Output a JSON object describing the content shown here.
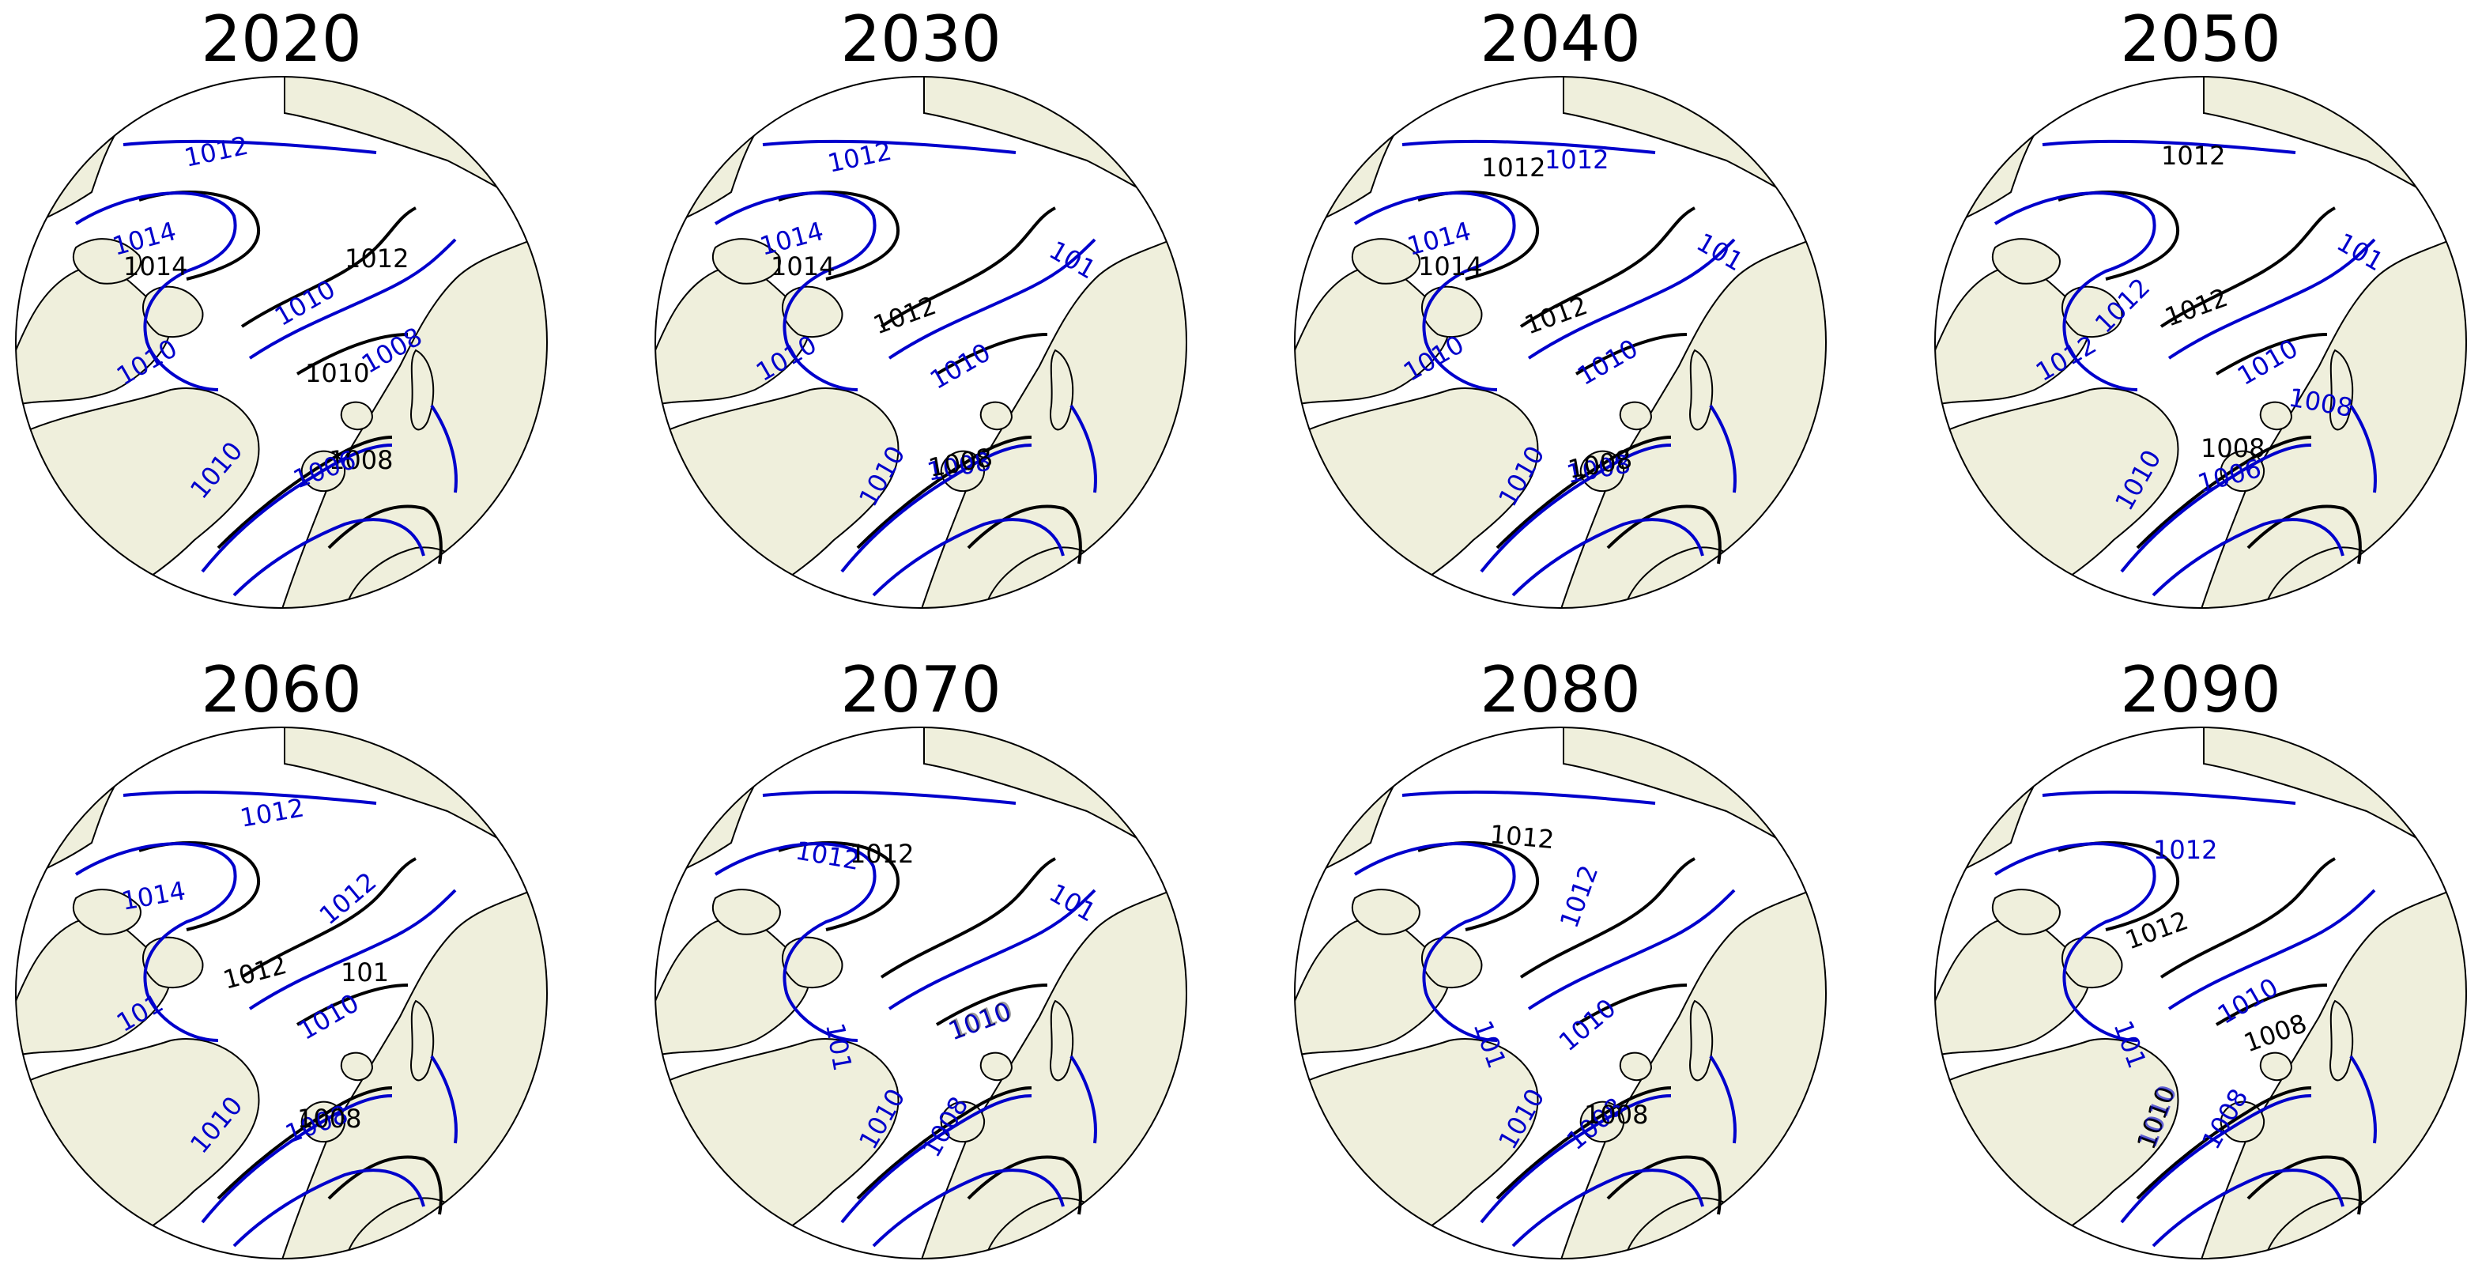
{
  "figure": {
    "panels": [
      {
        "year": "2020",
        "labels_black": [
          "1014",
          "1012",
          "1010",
          "1008"
        ],
        "labels_blue": [
          "1012",
          "1014",
          "1010",
          "1008",
          "1010",
          "1006",
          "1010"
        ]
      },
      {
        "year": "2030",
        "labels_black": [
          "1012",
          "1014",
          "1012",
          "1008"
        ],
        "labels_blue": [
          "1012",
          "1014",
          "1010",
          "1010",
          "1008",
          "1010",
          "101"
        ]
      },
      {
        "year": "2040",
        "labels_black": [
          "1012",
          "1014",
          "1012",
          "1008"
        ],
        "labels_blue": [
          "1012",
          "1014",
          "1010",
          "1010",
          "1008",
          "1010",
          "101"
        ]
      },
      {
        "year": "2050",
        "labels_black": [
          "1012",
          "1012",
          "1008"
        ],
        "labels_blue": [
          "1012",
          "1010",
          "1008",
          "1010",
          "1006",
          "1012",
          "101"
        ]
      },
      {
        "year": "2060",
        "labels_black": [
          "1012",
          "1012",
          "101",
          "1008"
        ],
        "labels_blue": [
          "1012",
          "1014",
          "1012",
          "1010",
          "1010",
          "1008",
          "101"
        ]
      },
      {
        "year": "2070",
        "labels_black": [
          "1012",
          "1010"
        ],
        "labels_blue": [
          "1012",
          "101",
          "1010",
          "1010",
          "1008",
          "101"
        ]
      },
      {
        "year": "2080",
        "labels_black": [
          "1012",
          "1008"
        ],
        "labels_blue": [
          "1012",
          "1010",
          "1010",
          "1008",
          "101"
        ]
      },
      {
        "year": "2090",
        "labels_black": [
          "1012",
          "1008",
          "1010"
        ],
        "labels_blue": [
          "1012",
          "1010",
          "1008",
          "1010",
          "101"
        ]
      }
    ],
    "colors": {
      "land": "#efefdc",
      "ocean": "#ffffff",
      "coastline": "#000000",
      "contour_black": "#000000",
      "contour_blue": "#0000cc"
    }
  }
}
